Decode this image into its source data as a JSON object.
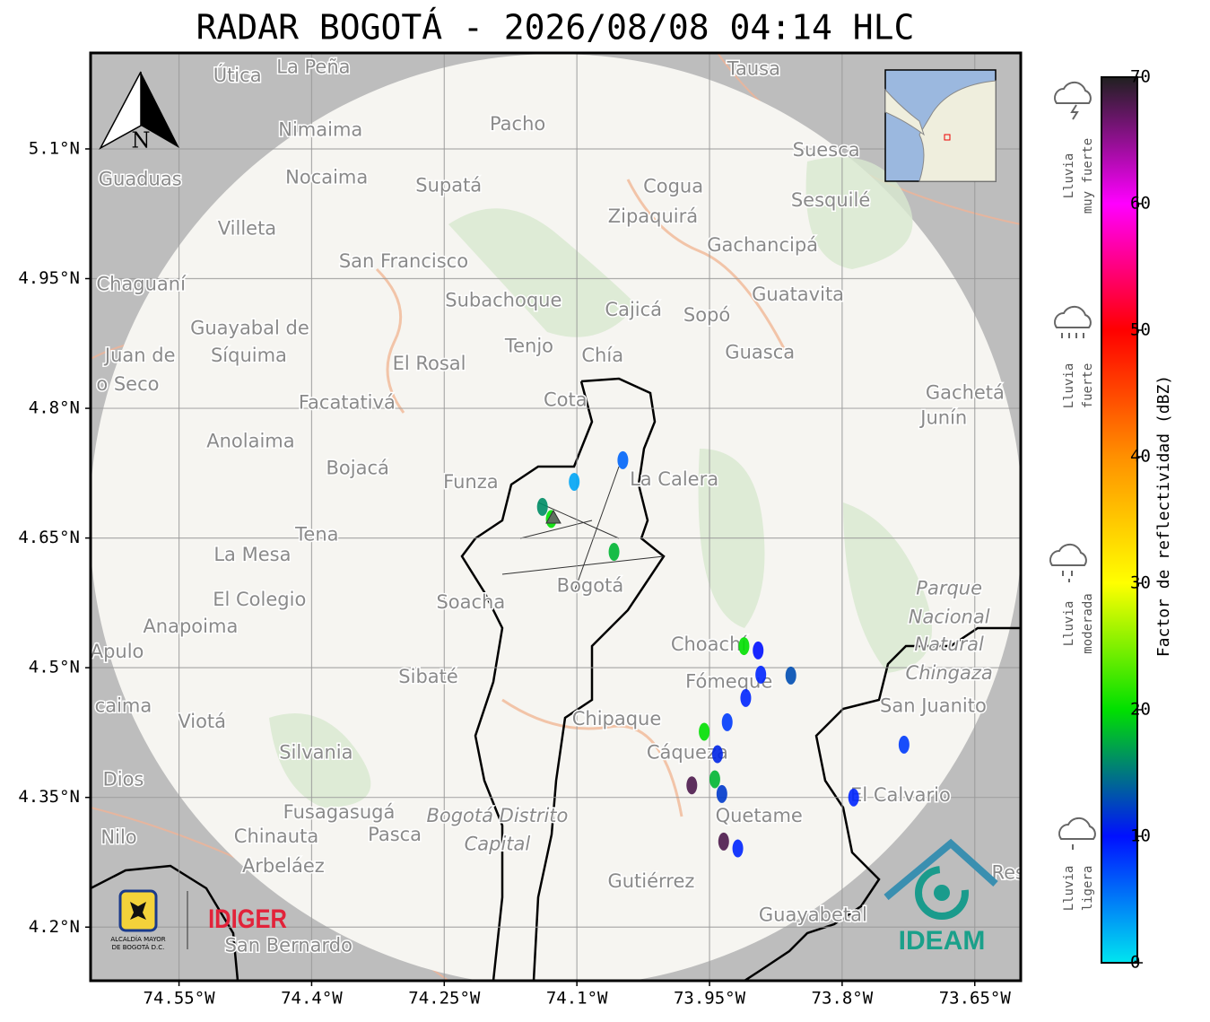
{
  "title": "RADAR BOGOTÁ - 2026/08/08 04:14 HLC",
  "north_label": "N",
  "map": {
    "xlim": [
      -74.65,
      -73.598
    ],
    "ylim": [
      4.138,
      5.211
    ],
    "xticks": [
      {
        "value": -74.55,
        "label": "74.55°W"
      },
      {
        "value": -74.4,
        "label": "74.4°W"
      },
      {
        "value": -74.25,
        "label": "74.25°W"
      },
      {
        "value": -74.1,
        "label": "74.1°W"
      },
      {
        "value": -73.95,
        "label": "73.95°W"
      },
      {
        "value": -73.8,
        "label": "73.8°W"
      },
      {
        "value": -73.65,
        "label": "73.65°W"
      }
    ],
    "yticks": [
      {
        "value": 5.1,
        "label": "5.1°N"
      },
      {
        "value": 4.95,
        "label": "4.95°N"
      },
      {
        "value": 4.8,
        "label": "4.8°N"
      },
      {
        "value": 4.65,
        "label": "4.65°N"
      },
      {
        "value": 4.5,
        "label": "4.5°N"
      },
      {
        "value": 4.35,
        "label": "4.35°N"
      },
      {
        "value": 4.2,
        "label": "4.2°N"
      }
    ],
    "grid": true
  },
  "places": [
    {
      "name": "Útica",
      "lon": -74.484,
      "lat": 5.184
    },
    {
      "name": "La Peña",
      "lon": -74.398,
      "lat": 5.194
    },
    {
      "name": "Tausa",
      "lon": -73.9,
      "lat": 5.192
    },
    {
      "name": "Pacho",
      "lon": -74.167,
      "lat": 5.128
    },
    {
      "name": "Nimaima",
      "lon": -74.39,
      "lat": 5.121
    },
    {
      "name": "Guaduas",
      "lon": -74.594,
      "lat": 5.064
    },
    {
      "name": "Nocaima",
      "lon": -74.383,
      "lat": 5.066
    },
    {
      "name": "Supatá",
      "lon": -74.245,
      "lat": 5.057
    },
    {
      "name": "Cogua",
      "lon": -73.991,
      "lat": 5.056
    },
    {
      "name": "Suesca",
      "lon": -73.818,
      "lat": 5.098
    },
    {
      "name": "Sesquilé",
      "lon": -73.813,
      "lat": 5.04
    },
    {
      "name": "Zipaquirá",
      "lon": -74.014,
      "lat": 5.021
    },
    {
      "name": "Villeta",
      "lon": -74.473,
      "lat": 5.007
    },
    {
      "name": "Gachancipá",
      "lon": -73.89,
      "lat": 4.988
    },
    {
      "name": "San Francisco",
      "lon": -74.296,
      "lat": 4.969
    },
    {
      "name": "Chaguaní",
      "lon": -74.593,
      "lat": 4.943
    },
    {
      "name": "Guatavita",
      "lon": -73.85,
      "lat": 4.931
    },
    {
      "name": "Subachoque",
      "lon": -74.183,
      "lat": 4.924
    },
    {
      "name": "Cajicá",
      "lon": -74.036,
      "lat": 4.913
    },
    {
      "name": "Sopó",
      "lon": -73.953,
      "lat": 4.907
    },
    {
      "name": "Guayabal de",
      "lon": -74.47,
      "lat": 4.892
    },
    {
      "name": "Síquima",
      "lon": -74.471,
      "lat": 4.86
    },
    {
      "name": "Juan de",
      "lon": -74.594,
      "lat": 4.86
    },
    {
      "name": "o Seco",
      "lon": -74.608,
      "lat": 4.827
    },
    {
      "name": "Tenjo",
      "lon": -74.154,
      "lat": 4.871
    },
    {
      "name": "Chía",
      "lon": -74.071,
      "lat": 4.86
    },
    {
      "name": "Guasca",
      "lon": -73.893,
      "lat": 4.864
    },
    {
      "name": "El Rosal",
      "lon": -74.267,
      "lat": 4.851
    },
    {
      "name": "Facatativá",
      "lon": -74.36,
      "lat": 4.806
    },
    {
      "name": "Cota",
      "lon": -74.113,
      "lat": 4.809
    },
    {
      "name": "Gachetá",
      "lon": -73.661,
      "lat": 4.817
    },
    {
      "name": "Junín",
      "lon": -73.685,
      "lat": 4.788
    },
    {
      "name": "Anolaima",
      "lon": -74.469,
      "lat": 4.761
    },
    {
      "name": "Bojacá",
      "lon": -74.348,
      "lat": 4.73
    },
    {
      "name": "Funza",
      "lon": -74.22,
      "lat": 4.714
    },
    {
      "name": "La Calera",
      "lon": -73.99,
      "lat": 4.717
    },
    {
      "name": "Tena",
      "lon": -74.394,
      "lat": 4.653
    },
    {
      "name": "La Mesa",
      "lon": -74.467,
      "lat": 4.63
    },
    {
      "name": "Bogotá",
      "lon": -74.085,
      "lat": 4.594,
      "kind": "capital"
    },
    {
      "name": "Soacha",
      "lon": -74.22,
      "lat": 4.575
    },
    {
      "name": "El Colegio",
      "lon": -74.459,
      "lat": 4.578
    },
    {
      "name": "Parque",
      "lon": -73.679,
      "lat": 4.591,
      "kind": "park"
    },
    {
      "name": "Nacional",
      "lon": -73.679,
      "lat": 4.558,
      "kind": "park"
    },
    {
      "name": "Natural",
      "lon": -73.679,
      "lat": 4.526,
      "kind": "park"
    },
    {
      "name": "Chingaza",
      "lon": -73.679,
      "lat": 4.493,
      "kind": "park"
    },
    {
      "name": "Anapoima",
      "lon": -74.537,
      "lat": 4.547
    },
    {
      "name": "Apulo",
      "lon": -74.62,
      "lat": 4.518
    },
    {
      "name": "Choachí",
      "lon": -73.951,
      "lat": 4.526
    },
    {
      "name": "Sibaté",
      "lon": -74.268,
      "lat": 4.489
    },
    {
      "name": "Fómeque",
      "lon": -73.928,
      "lat": 4.483
    },
    {
      "name": "San Juanito",
      "lon": -73.697,
      "lat": 4.455
    },
    {
      "name": "caima",
      "lon": -74.613,
      "lat": 4.455
    },
    {
      "name": "Viotá",
      "lon": -74.524,
      "lat": 4.437
    },
    {
      "name": "Chipaque",
      "lon": -74.055,
      "lat": 4.44
    },
    {
      "name": "Silvania",
      "lon": -74.395,
      "lat": 4.401
    },
    {
      "name": "Cáqueza",
      "lon": -73.975,
      "lat": 4.401
    },
    {
      "name": "Dios",
      "lon": -74.613,
      "lat": 4.37
    },
    {
      "name": "El Calvario",
      "lon": -73.734,
      "lat": 4.352
    },
    {
      "name": "Fusagasugá",
      "lon": -74.369,
      "lat": 4.332
    },
    {
      "name": "Quetame",
      "lon": -73.894,
      "lat": 4.328
    },
    {
      "name": "Bogotá Distrito",
      "lon": -74.19,
      "lat": 4.328,
      "kind": "district"
    },
    {
      "name": "Capital",
      "lon": -74.19,
      "lat": 4.295,
      "kind": "district"
    },
    {
      "name": "Nilo",
      "lon": -74.618,
      "lat": 4.303
    },
    {
      "name": "Chinauta",
      "lon": -74.44,
      "lat": 4.304
    },
    {
      "name": "Pasca",
      "lon": -74.306,
      "lat": 4.306
    },
    {
      "name": "Arbeláez",
      "lon": -74.432,
      "lat": 4.27
    },
    {
      "name": "Gutiérrez",
      "lon": -74.016,
      "lat": 4.252
    },
    {
      "name": "Guayabetal",
      "lon": -73.833,
      "lat": 4.213
    },
    {
      "name": "San Bernardo",
      "lon": -74.426,
      "lat": 4.178
    },
    {
      "name": "Res",
      "lon": -73.612,
      "lat": 4.262
    }
  ],
  "echoes": [
    {
      "lon": -73.911,
      "lat": 4.525,
      "dbz": 20
    },
    {
      "lon": -73.895,
      "lat": 4.52,
      "dbz": 10
    },
    {
      "lon": -73.892,
      "lat": 4.492,
      "dbz": 9
    },
    {
      "lon": -73.858,
      "lat": 4.491,
      "dbz": 13
    },
    {
      "lon": -73.909,
      "lat": 4.465,
      "dbz": 9
    },
    {
      "lon": -73.93,
      "lat": 4.437,
      "dbz": 8
    },
    {
      "lon": -73.941,
      "lat": 4.4,
      "dbz": 11
    },
    {
      "lon": -73.944,
      "lat": 4.371,
      "dbz": 18
    },
    {
      "lon": -73.956,
      "lat": 4.426,
      "dbz": 20
    },
    {
      "lon": -73.97,
      "lat": 4.364,
      "dbz": 68
    },
    {
      "lon": -73.936,
      "lat": 4.354,
      "dbz": 12
    },
    {
      "lon": -73.934,
      "lat": 4.299,
      "dbz": 68
    },
    {
      "lon": -73.918,
      "lat": 4.291,
      "dbz": 9
    },
    {
      "lon": -73.73,
      "lat": 4.411,
      "dbz": 8
    },
    {
      "lon": -73.787,
      "lat": 4.35,
      "dbz": 9
    },
    {
      "lon": -74.048,
      "lat": 4.74,
      "dbz": 6
    },
    {
      "lon": -74.129,
      "lat": 4.672,
      "dbz": 20
    },
    {
      "lon": -74.139,
      "lat": 4.686,
      "dbz": 16
    },
    {
      "lon": -74.103,
      "lat": 4.715,
      "dbz": 3
    },
    {
      "lon": -74.058,
      "lat": 4.634,
      "dbz": 18
    }
  ],
  "colorbar": {
    "label": "Factor de reflectividad (dBZ)",
    "lim": [
      0,
      70
    ],
    "ticks": [
      0,
      10,
      20,
      30,
      40,
      50,
      60,
      70
    ],
    "colors": [
      "#00e5f0",
      "#0010ff",
      "#00e000",
      "#ffff00",
      "#ff9000",
      "#ff0000",
      "#ff00ff",
      "#202020"
    ]
  },
  "legend": [
    {
      "lines": [
        "Lluvia",
        "muy fuerte"
      ]
    },
    {
      "lines": [
        "Lluvia",
        "fuerte"
      ]
    },
    {
      "lines": [
        "Lluvia",
        "moderada"
      ]
    },
    {
      "lines": [
        "Lluvia",
        "ligera"
      ]
    }
  ],
  "logos": {
    "alcaldia": [
      "ALCALDÍA MAYOR",
      "DE BOGOTÁ D.C."
    ],
    "idiger": "IDIGER",
    "ideam": "IDEAM"
  }
}
